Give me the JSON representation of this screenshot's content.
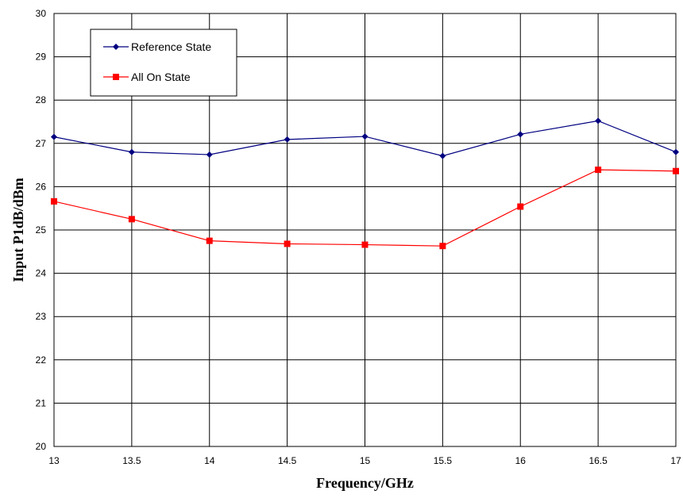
{
  "chart_data": {
    "type": "line",
    "title": "",
    "xlabel": "Frequency/GHz",
    "ylabel": "Input P1dB/dBm",
    "x": [
      13,
      13.5,
      14,
      14.5,
      15,
      15.5,
      16,
      16.5,
      17
    ],
    "xticks": [
      "13",
      "13.5",
      "14",
      "14.5",
      "15",
      "15.5",
      "16",
      "16.5",
      "17"
    ],
    "yticks": [
      "20",
      "21",
      "22",
      "23",
      "24",
      "25",
      "26",
      "27",
      "28",
      "29",
      "30"
    ],
    "xlim": [
      13,
      17
    ],
    "ylim": [
      20,
      30
    ],
    "grid": true,
    "legend_position": "top-left",
    "series": [
      {
        "name": "Reference State",
        "color": "#000080",
        "marker": "diamond",
        "values": [
          27.15,
          26.8,
          26.74,
          27.09,
          27.16,
          26.71,
          27.21,
          27.52,
          26.8
        ]
      },
      {
        "name": "All On State",
        "color": "#ff0000",
        "marker": "square",
        "values": [
          25.66,
          25.25,
          24.75,
          24.68,
          24.66,
          24.63,
          25.54,
          26.39,
          26.36
        ]
      }
    ]
  }
}
